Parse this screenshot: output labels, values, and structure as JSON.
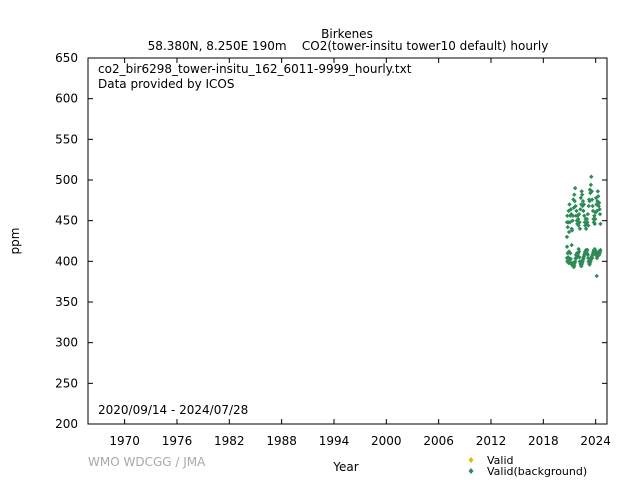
{
  "chart_data": {
    "type": "scatter",
    "title": "Birkenes",
    "subtitle": "58.380N, 8.250E 190m    CO2(tower-insitu tower10 default) hourly",
    "file_label": "co2_bir6298_tower-insitu_162_6011-9999_hourly.txt",
    "provider_label": "Data provided by ICOS",
    "date_range_label": "2020/09/14 - 2024/07/28",
    "xlabel": "Year",
    "ylabel": "ppm",
    "watermark": "WMO WDCGG / JMA",
    "xlim": [
      1965.8,
      2025.3
    ],
    "ylim": [
      200,
      650
    ],
    "x_ticks": [
      1970,
      1976,
      1982,
      1988,
      1994,
      2000,
      2006,
      2012,
      2018,
      2024
    ],
    "y_ticks": [
      200,
      250,
      300,
      350,
      400,
      450,
      500,
      550,
      600,
      650
    ],
    "grid": false,
    "legend_position": "bottom-right",
    "series": [
      {
        "name": "Valid",
        "color": "#e6b800",
        "points": []
      },
      {
        "name": "Valid(background)",
        "color": "#2e8b57",
        "points": [
          [
            2020.71,
            404
          ],
          [
            2020.71,
            430
          ],
          [
            2020.72,
            448
          ],
          [
            2020.72,
            418
          ],
          [
            2020.75,
            456
          ],
          [
            2020.75,
            400
          ],
          [
            2020.8,
            442
          ],
          [
            2020.8,
            410
          ],
          [
            2020.85,
            448
          ],
          [
            2020.85,
            405
          ],
          [
            2020.9,
            462
          ],
          [
            2020.9,
            398
          ],
          [
            2020.95,
            436
          ],
          [
            2020.95,
            412
          ],
          [
            2021.0,
            470
          ],
          [
            2021.0,
            402
          ],
          [
            2021.05,
            448
          ],
          [
            2021.05,
            398
          ],
          [
            2021.1,
            456
          ],
          [
            2021.1,
            410
          ],
          [
            2021.15,
            464
          ],
          [
            2021.15,
            403
          ],
          [
            2021.2,
            458
          ],
          [
            2021.2,
            398
          ],
          [
            2021.25,
            440
          ],
          [
            2021.25,
            420
          ],
          [
            2021.3,
            438
          ],
          [
            2021.3,
            396
          ],
          [
            2021.35,
            450
          ],
          [
            2021.35,
            395
          ],
          [
            2021.4,
            456
          ],
          [
            2021.4,
            398
          ],
          [
            2021.45,
            476
          ],
          [
            2021.45,
            394
          ],
          [
            2021.5,
            466
          ],
          [
            2021.5,
            393
          ],
          [
            2021.55,
            482
          ],
          [
            2021.55,
            395
          ],
          [
            2021.6,
            474
          ],
          [
            2021.6,
            398
          ],
          [
            2021.65,
            490
          ],
          [
            2021.65,
            400
          ],
          [
            2021.7,
            468
          ],
          [
            2021.7,
            404
          ],
          [
            2021.75,
            456
          ],
          [
            2021.75,
            408
          ],
          [
            2021.8,
            462
          ],
          [
            2021.8,
            404
          ],
          [
            2021.85,
            450
          ],
          [
            2021.85,
            410
          ],
          [
            2021.9,
            446
          ],
          [
            2021.9,
            408
          ],
          [
            2021.95,
            456
          ],
          [
            2021.95,
            406
          ],
          [
            2022.0,
            452
          ],
          [
            2022.0,
            410
          ],
          [
            2022.05,
            444
          ],
          [
            2022.05,
            415
          ],
          [
            2022.1,
            458
          ],
          [
            2022.1,
            412
          ],
          [
            2022.15,
            448
          ],
          [
            2022.15,
            405
          ],
          [
            2022.2,
            440
          ],
          [
            2022.2,
            400
          ],
          [
            2022.25,
            464
          ],
          [
            2022.25,
            398
          ],
          [
            2022.3,
            478
          ],
          [
            2022.3,
            396
          ],
          [
            2022.35,
            470
          ],
          [
            2022.35,
            394
          ],
          [
            2022.4,
            486
          ],
          [
            2022.4,
            396
          ],
          [
            2022.45,
            482
          ],
          [
            2022.45,
            398
          ],
          [
            2022.5,
            468
          ],
          [
            2022.5,
            400
          ],
          [
            2022.55,
            474
          ],
          [
            2022.55,
            402
          ],
          [
            2022.6,
            462
          ],
          [
            2022.6,
            404
          ],
          [
            2022.65,
            470
          ],
          [
            2022.65,
            406
          ],
          [
            2022.7,
            456
          ],
          [
            2022.7,
            408
          ],
          [
            2022.75,
            448
          ],
          [
            2022.75,
            410
          ],
          [
            2022.8,
            444
          ],
          [
            2022.8,
            412
          ],
          [
            2022.85,
            452
          ],
          [
            2022.85,
            410
          ],
          [
            2022.9,
            440
          ],
          [
            2022.9,
            414
          ],
          [
            2022.95,
            446
          ],
          [
            2022.95,
            412
          ],
          [
            2023.0,
            452
          ],
          [
            2023.0,
            410
          ],
          [
            2023.05,
            448
          ],
          [
            2023.05,
            414
          ],
          [
            2023.1,
            458
          ],
          [
            2023.1,
            408
          ],
          [
            2023.15,
            444
          ],
          [
            2023.15,
            404
          ],
          [
            2023.2,
            468
          ],
          [
            2023.2,
            400
          ],
          [
            2023.25,
            476
          ],
          [
            2023.25,
            398
          ],
          [
            2023.3,
            474
          ],
          [
            2023.3,
            396
          ],
          [
            2023.35,
            488
          ],
          [
            2023.35,
            398
          ],
          [
            2023.4,
            484
          ],
          [
            2023.4,
            400
          ],
          [
            2023.45,
            494
          ],
          [
            2023.45,
            402
          ],
          [
            2023.5,
            504
          ],
          [
            2023.5,
            404
          ],
          [
            2023.55,
            486
          ],
          [
            2023.55,
            406
          ],
          [
            2023.6,
            476
          ],
          [
            2023.6,
            404
          ],
          [
            2023.65,
            468
          ],
          [
            2023.65,
            408
          ],
          [
            2023.7,
            462
          ],
          [
            2023.7,
            410
          ],
          [
            2023.75,
            452
          ],
          [
            2023.75,
            412
          ],
          [
            2023.8,
            448
          ],
          [
            2023.8,
            414
          ],
          [
            2023.85,
            456
          ],
          [
            2023.85,
            412
          ],
          [
            2023.9,
            446
          ],
          [
            2023.9,
            415
          ],
          [
            2023.95,
            452
          ],
          [
            2023.95,
            410
          ],
          [
            2024.0,
            460
          ],
          [
            2024.0,
            408
          ],
          [
            2024.05,
            478
          ],
          [
            2024.05,
            412
          ],
          [
            2024.1,
            470
          ],
          [
            2024.1,
            408
          ],
          [
            2024.12,
            382
          ],
          [
            2024.15,
            462
          ],
          [
            2024.15,
            404
          ],
          [
            2024.2,
            474
          ],
          [
            2024.2,
            406
          ],
          [
            2024.25,
            486
          ],
          [
            2024.25,
            408
          ],
          [
            2024.3,
            480
          ],
          [
            2024.3,
            410
          ],
          [
            2024.35,
            468
          ],
          [
            2024.35,
            412
          ],
          [
            2024.4,
            472
          ],
          [
            2024.4,
            408
          ],
          [
            2024.45,
            464
          ],
          [
            2024.45,
            410
          ],
          [
            2024.5,
            458
          ],
          [
            2024.5,
            412
          ],
          [
            2024.55,
            446
          ],
          [
            2024.55,
            414
          ]
        ]
      }
    ]
  }
}
